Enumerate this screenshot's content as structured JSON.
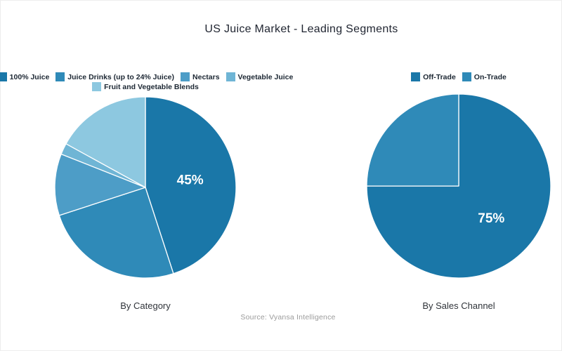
{
  "title": "US Juice Market - Leading Segments",
  "source": "Source: Vyansa Intelligence",
  "palette": [
    "#1a77a8",
    "#2f8ab8",
    "#4d9dc7",
    "#6fb5d5",
    "#8dc8e0"
  ],
  "slice_border_color": "#ffffff",
  "data_label_color": "#ffffff",
  "chart_data": [
    {
      "type": "pie",
      "name": "by-category",
      "caption": "By Category",
      "start_angle": 0,
      "legend_position": "top",
      "legend_rows": [
        [
          0,
          1,
          2,
          3
        ],
        [
          4
        ]
      ],
      "slices": [
        {
          "label": "100% Juice",
          "value": 45,
          "color": "#1a77a8",
          "data_label": "45%"
        },
        {
          "label": "Juice Drinks (up to 24% Juice)",
          "value": 25,
          "color": "#2f8ab8"
        },
        {
          "label": "Nectars",
          "value": 11,
          "color": "#4d9dc7"
        },
        {
          "label": "Vegetable Juice",
          "value": 2,
          "color": "#6fb5d5"
        },
        {
          "label": "Fruit and Vegetable Blends",
          "value": 17,
          "color": "#8dc8e0"
        }
      ]
    },
    {
      "type": "pie",
      "name": "by-sales-channel",
      "caption": "By Sales Channel",
      "start_angle": 0,
      "legend_position": "top",
      "legend_rows": [
        [
          0,
          1
        ]
      ],
      "slices": [
        {
          "label": "Off-Trade",
          "value": 75,
          "color": "#1a77a8",
          "data_label": "75%"
        },
        {
          "label": "On-Trade",
          "value": 25,
          "color": "#2f8ab8"
        }
      ]
    }
  ]
}
